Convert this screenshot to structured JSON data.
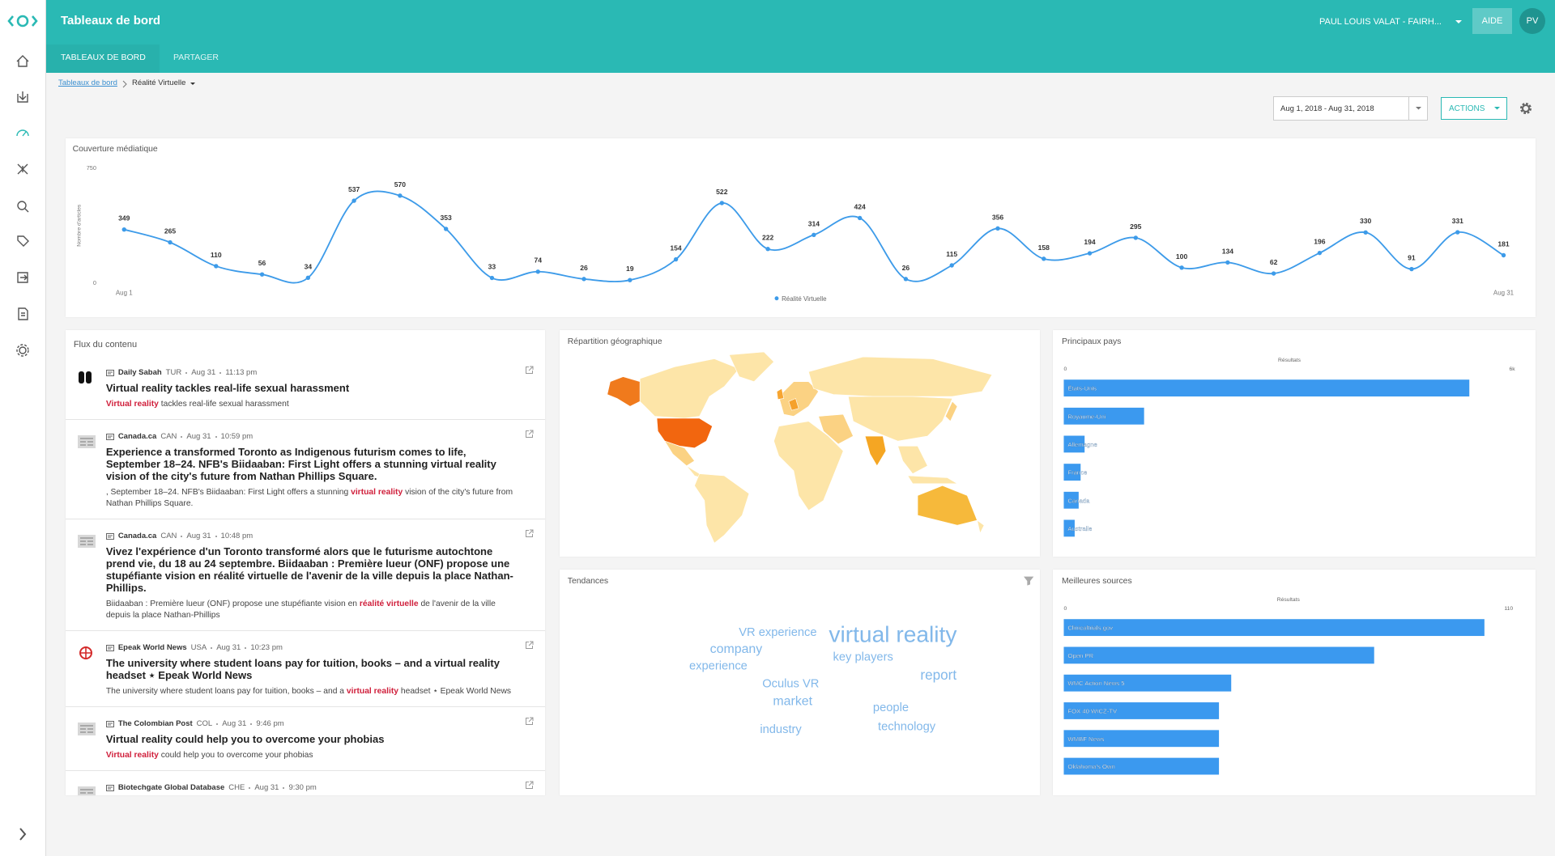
{
  "header": {
    "title": "Tableaux de bord",
    "user": "PAUL LOUIS VALAT - FAIRH...",
    "help": "AIDE",
    "avatar": "PV"
  },
  "tabs": [
    "TABLEAUX DE BORD",
    "PARTAGER"
  ],
  "breadcrumb": {
    "parent": "Tableaux de bord",
    "current": "Réalité Virtuelle"
  },
  "toolbar": {
    "date_range": "Aug 1, 2018 - Aug 31, 2018",
    "actions": "ACTIONS"
  },
  "chart_data": [
    {
      "type": "line",
      "title": "Couverture médiatique",
      "y_label": "Nombre d'articles",
      "categories": [
        "Aug 1",
        null,
        null,
        null,
        null,
        null,
        null,
        null,
        null,
        null,
        null,
        null,
        null,
        null,
        null,
        null,
        null,
        null,
        null,
        null,
        null,
        null,
        null,
        null,
        null,
        null,
        null,
        null,
        null,
        null,
        "Aug 31"
      ],
      "series": [
        {
          "name": "Réalité Virtuelle",
          "color": "#3d9be9",
          "values": [
            349,
            265,
            110,
            56,
            34,
            537,
            570,
            353,
            33,
            74,
            26,
            19,
            154,
            522,
            222,
            314,
            424,
            26,
            115,
            356,
            158,
            194,
            295,
            100,
            134,
            62,
            196,
            330,
            91,
            331,
            181
          ]
        }
      ],
      "ylim": [
        0,
        750
      ],
      "yticks": [
        0,
        750
      ],
      "data_labels": true,
      "legend": "bottom"
    },
    {
      "type": "barh",
      "title": "Principaux pays",
      "x_label": "Résultats",
      "categories": [
        "États-Unis",
        "Royaume-Uni",
        "Allemagne",
        "France",
        "Canada",
        "Australie"
      ],
      "values": [
        5393,
        1068,
        277,
        224,
        198,
        145
      ],
      "color": "#3b99ef",
      "xlim": [
        0,
        6000
      ],
      "xticks": [
        0,
        {
          "value": 6000,
          "label": "6k"
        }
      ]
    },
    {
      "type": "barh",
      "title": "Meilleures sources",
      "x_label": "Résultats",
      "categories": [
        "Clinicaltrials.gov",
        "Open PR",
        "WMC Action News 5",
        "FOX 40 WICZ-TV",
        "WMBF News",
        "Oklahoma's Own"
      ],
      "values": [
        103,
        76,
        41,
        38,
        38,
        38
      ],
      "color": "#3b99ef",
      "xlim": [
        0,
        110
      ],
      "xticks": [
        0,
        110
      ]
    }
  ],
  "feed": {
    "title": "Flux du contenu",
    "items": [
      {
        "source": "Daily Sabah",
        "country": "TUR",
        "date": "Aug 31",
        "time": "11:13 pm",
        "title": "Virtual reality tackles real-life sexual harassment",
        "snippet": {
          "highlight": "Virtual reality",
          "after": " tackles real-life sexual harassment"
        }
      },
      {
        "source": "Canada.ca",
        "country": "CAN",
        "date": "Aug 31",
        "time": "10:59 pm",
        "title": "Experience a transformed Toronto as Indigenous futurism comes to life, September 18–24. NFB's Biidaaban: First Light offers a stunning virtual reality vision of the city's future from Nathan Phillips Square.",
        "snippet": {
          "before": ", September 18–24. NFB's Biidaaban: First Light offers a stunning ",
          "highlight": "virtual reality",
          "after": " vision of the city's future from Nathan Phillips Square."
        }
      },
      {
        "source": "Canada.ca",
        "country": "CAN",
        "date": "Aug 31",
        "time": "10:48 pm",
        "title": "Vivez l'expérience d'un Toronto transformé alors que le futurisme autochtone prend vie, du 18 au 24 septembre. Biidaaban : Première lueur (ONF) propose une stupéfiante vision en réalité virtuelle de l'avenir de la ville depuis la place Nathan-Phillips.",
        "snippet": {
          "before": "Biidaaban : Première lueur (ONF) propose une stupéfiante vision en ",
          "highlight": "réalité virtuelle",
          "after": " de l'avenir de la ville depuis la place Nathan-Phillips"
        }
      },
      {
        "source": "Epeak World News",
        "country": "USA",
        "date": "Aug 31",
        "time": "10:23 pm",
        "title": "The university where student loans pay for tuition, books – and a virtual reality headset ⋆ Epeak World News",
        "snippet": {
          "before": "The university where student loans pay for tuition, books – and a ",
          "highlight": "virtual reality",
          "after": " headset ⋆ Epeak World News"
        }
      },
      {
        "source": "The Colombian Post",
        "country": "COL",
        "date": "Aug 31",
        "time": "9:46 pm",
        "title": "Virtual reality could help you to overcome your phobias",
        "snippet": {
          "highlight": "Virtual reality",
          "after": " could help you to overcome your phobias"
        }
      },
      {
        "source": "Biotechgate Global Database",
        "country": "CHE",
        "date": "Aug 31",
        "time": "9:30 pm"
      }
    ]
  },
  "geo_map": {
    "title": "Répartition géographique"
  },
  "trends": {
    "title": "Tendances",
    "words": [
      "VR experience",
      "virtual reality",
      "company",
      "key players",
      "experience",
      "report",
      "Oculus VR",
      "market",
      "people",
      "industry",
      "technology"
    ]
  }
}
